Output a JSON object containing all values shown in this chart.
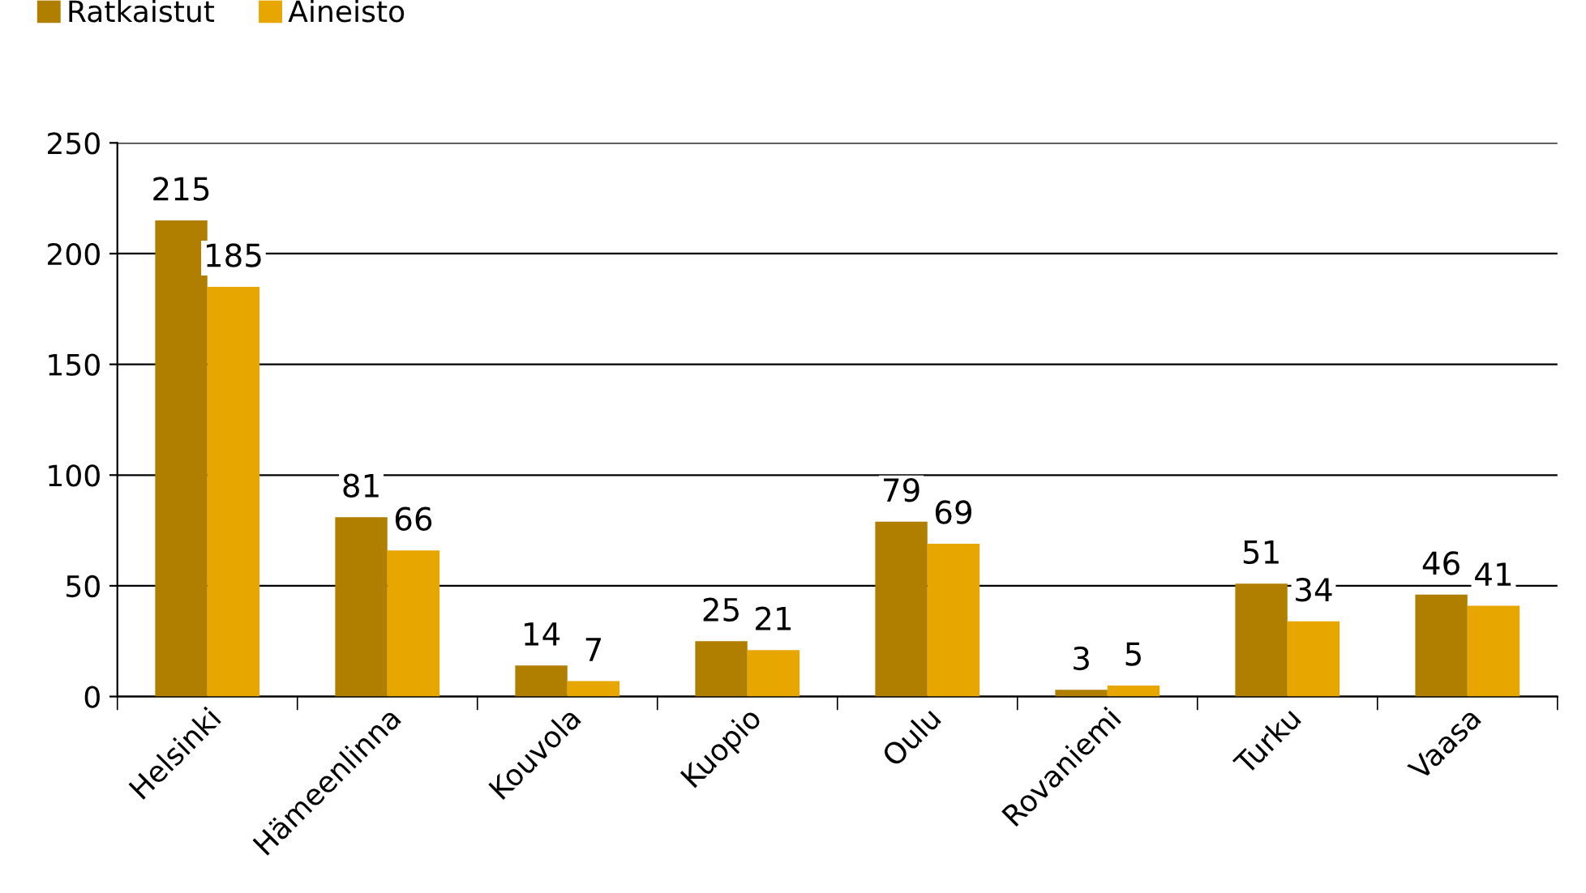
{
  "chart_data": {
    "type": "bar",
    "categories": [
      "Helsinki",
      "Hämeenlinna",
      "Kouvola",
      "Kuopio",
      "Oulu",
      "Rovaniemi",
      "Turku",
      "Vaasa"
    ],
    "series": [
      {
        "name": "Ratkaistut",
        "color": "#b07f00",
        "values": [
          215,
          81,
          14,
          25,
          79,
          3,
          51,
          46
        ]
      },
      {
        "name": "Aineisto",
        "color": "#e8a600",
        "values": [
          185,
          66,
          7,
          21,
          69,
          5,
          34,
          41
        ]
      }
    ],
    "ylim": [
      0,
      250
    ],
    "yticks": [
      0,
      50,
      100,
      150,
      200,
      250
    ],
    "grid": "y",
    "legend": "top left",
    "data_labels": true
  }
}
